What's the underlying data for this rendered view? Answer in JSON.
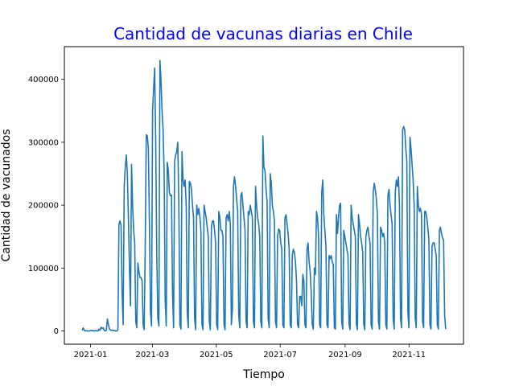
{
  "chart_data": {
    "type": "line",
    "title": "Cantidad de vacunas diarias en Chile",
    "title_color": "#0000ff",
    "xlabel": "Tiempo",
    "ylabel": "Cantidad de vacunados",
    "line_color": "#1f77b4",
    "grid": false,
    "x_start": "2020-12-24",
    "x_end": "2021-12-06",
    "xlim": [
      "2020-12-07",
      "2021-12-23"
    ],
    "ylim": [
      -21000,
      452000
    ],
    "x_ticks": [
      "2021-01",
      "2021-03",
      "2021-05",
      "2021-07",
      "2021-09",
      "2021-11"
    ],
    "y_ticks": [
      0,
      100000,
      200000,
      300000,
      400000
    ],
    "y_tick_labels": [
      "0",
      "100000",
      "200000",
      "300000",
      "400000"
    ],
    "series": [
      {
        "values": [
          1000,
          5000,
          1000,
          0,
          500,
          0,
          0,
          0,
          1000,
          0,
          1000,
          0,
          0,
          1000,
          0,
          0,
          3000,
          1000,
          6000,
          4000,
          5000,
          1000,
          0,
          1000,
          19000,
          10000,
          3000,
          1000,
          1500,
          800,
          1000,
          500,
          0,
          0,
          1500,
          170000,
          175000,
          168000,
          60000,
          10000,
          230000,
          260000,
          280000,
          250000,
          180000,
          100000,
          40000,
          265000,
          200000,
          160000,
          140000,
          15000,
          5000,
          108000,
          95000,
          85000,
          85000,
          80000,
          10000,
          2000,
          130000,
          312000,
          310000,
          290000,
          170000,
          30000,
          8000,
          350000,
          385000,
          418000,
          300000,
          120000,
          20000,
          8000,
          430000,
          400000,
          350000,
          320000,
          250000,
          50000,
          8000,
          268000,
          255000,
          220000,
          215000,
          216000,
          60000,
          5000,
          270000,
          280000,
          285000,
          300000,
          200000,
          10000,
          3000,
          285000,
          240000,
          230000,
          240000,
          200000,
          30000,
          5000,
          238000,
          235000,
          225000,
          200000,
          180000,
          20000,
          2000,
          200000,
          185000,
          195000,
          182000,
          160000,
          10000,
          2000,
          200000,
          190000,
          180000,
          165000,
          150000,
          15000,
          2000,
          165000,
          175000,
          175000,
          160000,
          140000,
          10000,
          2000,
          190000,
          182000,
          160000,
          160000,
          150000,
          10000,
          2000,
          180000,
          185000,
          175000,
          190000,
          170000,
          10000,
          35000,
          230000,
          245000,
          230000,
          210000,
          190000,
          25000,
          5000,
          215000,
          220000,
          200000,
          180000,
          160000,
          15000,
          5000,
          190000,
          185000,
          200000,
          190000,
          180000,
          15000,
          5000,
          230000,
          200000,
          180000,
          170000,
          150000,
          15000,
          5000,
          310000,
          260000,
          255000,
          225000,
          205000,
          20000,
          5000,
          250000,
          235000,
          200000,
          190000,
          175000,
          15000,
          5000,
          150000,
          162000,
          160000,
          140000,
          130000,
          10000,
          5000,
          180000,
          185000,
          170000,
          155000,
          130000,
          10000,
          5000,
          120000,
          130000,
          125000,
          110000,
          80000,
          10000,
          5000,
          55000,
          55000,
          40000,
          90000,
          80000,
          10000,
          5000,
          130000,
          140000,
          110000,
          95000,
          60000,
          10000,
          3000,
          100000,
          90000,
          190000,
          180000,
          150000,
          10000,
          5000,
          220000,
          240000,
          185000,
          160000,
          135000,
          10000,
          5000,
          120000,
          115000,
          120000,
          110000,
          105000,
          5000,
          3000,
          185000,
          155000,
          180000,
          200000,
          203000,
          15000,
          3000,
          160000,
          150000,
          140000,
          130000,
          120000,
          10000,
          2000,
          200000,
          180000,
          170000,
          160000,
          150000,
          10000,
          2000,
          185000,
          170000,
          150000,
          140000,
          125000,
          10000,
          2000,
          150000,
          160000,
          165000,
          150000,
          140000,
          10000,
          3000,
          220000,
          235000,
          225000,
          210000,
          185000,
          15000,
          3000,
          165000,
          160000,
          150000,
          155000,
          140000,
          10000,
          3000,
          215000,
          225000,
          200000,
          185000,
          170000,
          20000,
          3000,
          220000,
          240000,
          230000,
          245000,
          200000,
          20000,
          5000,
          320000,
          325000,
          320000,
          290000,
          270000,
          30000,
          5000,
          308000,
          290000,
          265000,
          240000,
          200000,
          20000,
          5000,
          230000,
          200000,
          190000,
          195000,
          185000,
          15000,
          5000,
          190000,
          190000,
          180000,
          165000,
          145000,
          10000,
          3000,
          135000,
          140000,
          140000,
          130000,
          120000,
          10000,
          3000,
          160000,
          165000,
          155000,
          148000,
          145000,
          25000,
          3000
        ]
      }
    ]
  }
}
